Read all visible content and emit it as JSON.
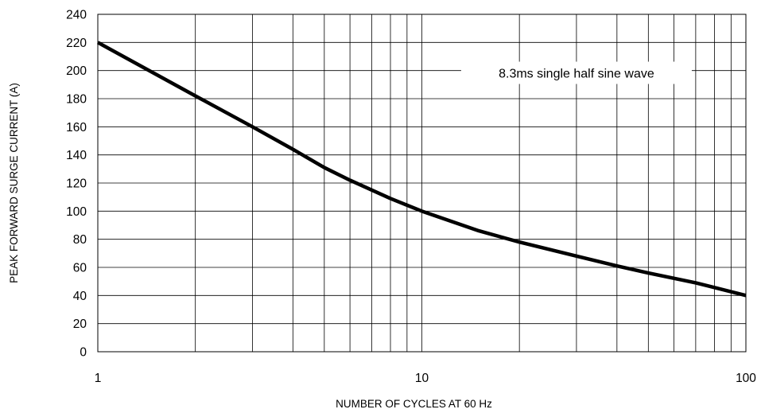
{
  "chart_data": {
    "type": "line",
    "title": "",
    "xlabel": "NUMBER OF CYCLES AT 60 Hz",
    "ylabel": "PEAK FORWARD SURGE CURRENT (A)",
    "xscale": "log",
    "xlim": [
      1,
      100
    ],
    "ylim": [
      0,
      240
    ],
    "x_ticks": [
      1,
      10,
      100
    ],
    "x_tick_labels": [
      "1",
      "10",
      "100"
    ],
    "y_ticks": [
      0,
      20,
      40,
      60,
      80,
      100,
      120,
      140,
      160,
      180,
      200,
      220,
      240
    ],
    "y_tick_labels": [
      "0",
      "20",
      "40",
      "60",
      "80",
      "100",
      "120",
      "140",
      "160",
      "180",
      "200",
      "220",
      "240"
    ],
    "grid": true,
    "annotation": "8.3ms single half sine wave",
    "series": [
      {
        "color": "#000000",
        "x": [
          1,
          2,
          3,
          4,
          5,
          6,
          8,
          10,
          15,
          20,
          30,
          40,
          50,
          70,
          100
        ],
        "y": [
          220,
          182,
          160,
          144,
          131,
          122,
          109,
          100,
          86,
          78,
          68,
          61,
          56,
          49,
          40
        ]
      }
    ]
  }
}
